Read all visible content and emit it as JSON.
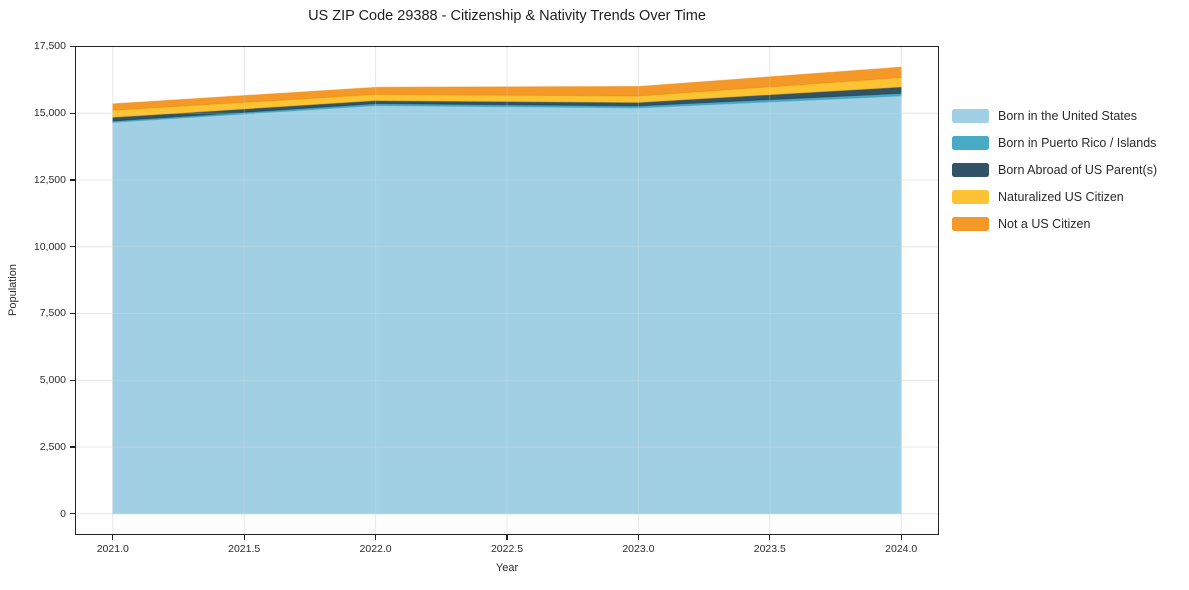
{
  "figure": {
    "title": "US ZIP Code 29388 - Citizenship & Nativity Trends Over Time"
  },
  "chart_data": {
    "type": "area",
    "stacked": true,
    "title": "US ZIP Code 29388 - Citizenship & Nativity Trends Over Time",
    "xlabel": "Year",
    "ylabel": "Population",
    "x": [
      2021,
      2022,
      2023,
      2024
    ],
    "series": [
      {
        "name": "Born in the United States",
        "color": "#97CBE1",
        "values": [
          14660,
          15290,
          15200,
          15650
        ]
      },
      {
        "name": "Born in Puerto Rico / Islands",
        "color": "#35A0C0",
        "values": [
          50,
          70,
          75,
          95
        ]
      },
      {
        "name": "Born Abroad of US Parent(s)",
        "color": "#1B4054",
        "values": [
          140,
          115,
          130,
          240
        ]
      },
      {
        "name": "Naturalized US Citizen",
        "color": "#FCBD1D",
        "values": [
          260,
          230,
          240,
          350
        ]
      },
      {
        "name": "Not a US Citizen",
        "color": "#F38D10",
        "values": [
          240,
          265,
          355,
          390
        ]
      }
    ],
    "stacked_totals": [
      15350,
      15970,
      16000,
      16725
    ],
    "xlim": [
      2020.86,
      2024.14
    ],
    "ylim": [
      -760,
      17480
    ],
    "xticks": {
      "values": [
        2021.0,
        2021.5,
        2022.0,
        2022.5,
        2023.0,
        2023.5,
        2024.0
      ],
      "labels": [
        "2021.0",
        "2021.5",
        "2022.0",
        "2022.5",
        "2023.0",
        "2023.5",
        "2024.0"
      ]
    },
    "yticks": {
      "values": [
        0,
        2500,
        5000,
        7500,
        10000,
        12500,
        15000,
        17500
      ],
      "labels": [
        "0",
        "2,500",
        "5,000",
        "7,500",
        "10,000",
        "12,500",
        "15,000",
        "17,500"
      ]
    },
    "grid": true,
    "legend_position": "right",
    "fill_alpha": 0.9,
    "colors": {
      "grid": "#e9e9e9",
      "spine": "#222222",
      "text": "#2b2b2b",
      "background": "#ffffff"
    }
  }
}
